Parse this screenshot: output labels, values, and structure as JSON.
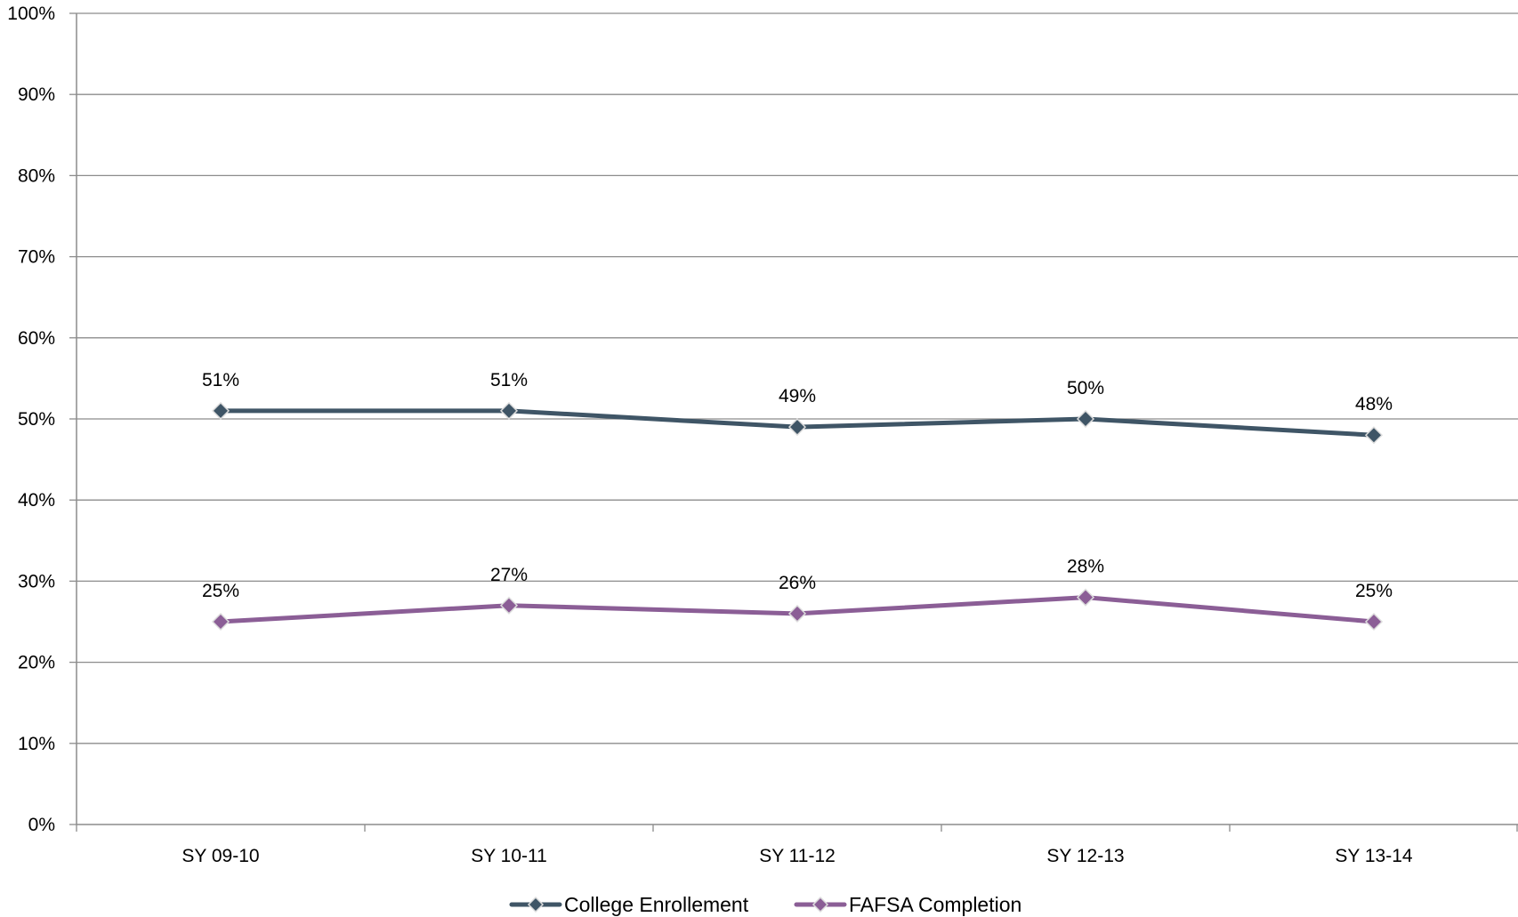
{
  "chart_data": {
    "type": "line",
    "title": "",
    "xlabel": "",
    "ylabel": "",
    "categories": [
      "SY 09-10",
      "SY 10-11",
      "SY 11-12",
      "SY 12-13",
      "SY 13-14"
    ],
    "ylim": [
      0,
      100
    ],
    "y_ticks": [
      0,
      10,
      20,
      30,
      40,
      50,
      60,
      70,
      80,
      90,
      100
    ],
    "y_tick_labels": [
      "0%",
      "10%",
      "20%",
      "30%",
      "40%",
      "50%",
      "60%",
      "70%",
      "80%",
      "90%",
      "100%"
    ],
    "grid": true,
    "legend_position": "bottom",
    "series": [
      {
        "name": "College Enrollement",
        "color": "#3f5566",
        "marker": "diamond",
        "values": [
          51,
          51,
          49,
          50,
          48
        ],
        "labels": [
          "51%",
          "51%",
          "49%",
          "50%",
          "48%"
        ]
      },
      {
        "name": "FAFSA Completion",
        "color": "#8b5e96",
        "marker": "diamond",
        "values": [
          25,
          27,
          26,
          28,
          25
        ],
        "labels": [
          "25%",
          "27%",
          "26%",
          "28%",
          "25%"
        ]
      }
    ]
  }
}
